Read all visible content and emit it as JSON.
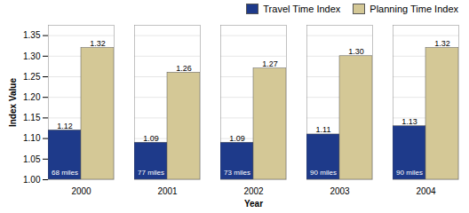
{
  "chart_data": {
    "type": "bar",
    "categories": [
      "2000",
      "2001",
      "2002",
      "2003",
      "2004"
    ],
    "series": [
      {
        "name": "Travel Time Index",
        "color": "#1E3A8A",
        "values": [
          1.12,
          1.09,
          1.09,
          1.11,
          1.13
        ],
        "value_labels": [
          "1.12",
          "1.09",
          "1.09",
          "1.11",
          "1.13"
        ],
        "annotations": [
          "68 miles",
          "77 miles",
          "73 miles",
          "90 miles",
          "90 miles"
        ]
      },
      {
        "name": "Planning Time Index",
        "color": "#D4C896",
        "values": [
          1.32,
          1.26,
          1.27,
          1.3,
          1.32
        ],
        "value_labels": [
          "1.32",
          "1.26",
          "1.27",
          "1.30",
          "1.32"
        ]
      }
    ],
    "xlabel": "Year",
    "ylabel": "Index Value",
    "ylim": [
      1.0,
      1.375
    ],
    "yticks": [
      {
        "value": 1.0,
        "label": "1.00"
      },
      1.05,
      {
        "value": 1.1,
        "label": "1.10"
      },
      1.15,
      {
        "value": 1.2,
        "label": "1.20"
      },
      1.25,
      {
        "value": 1.3,
        "label": "1.30"
      },
      1.35
    ],
    "grid": true,
    "legend": "upper right",
    "data_labels": true
  }
}
